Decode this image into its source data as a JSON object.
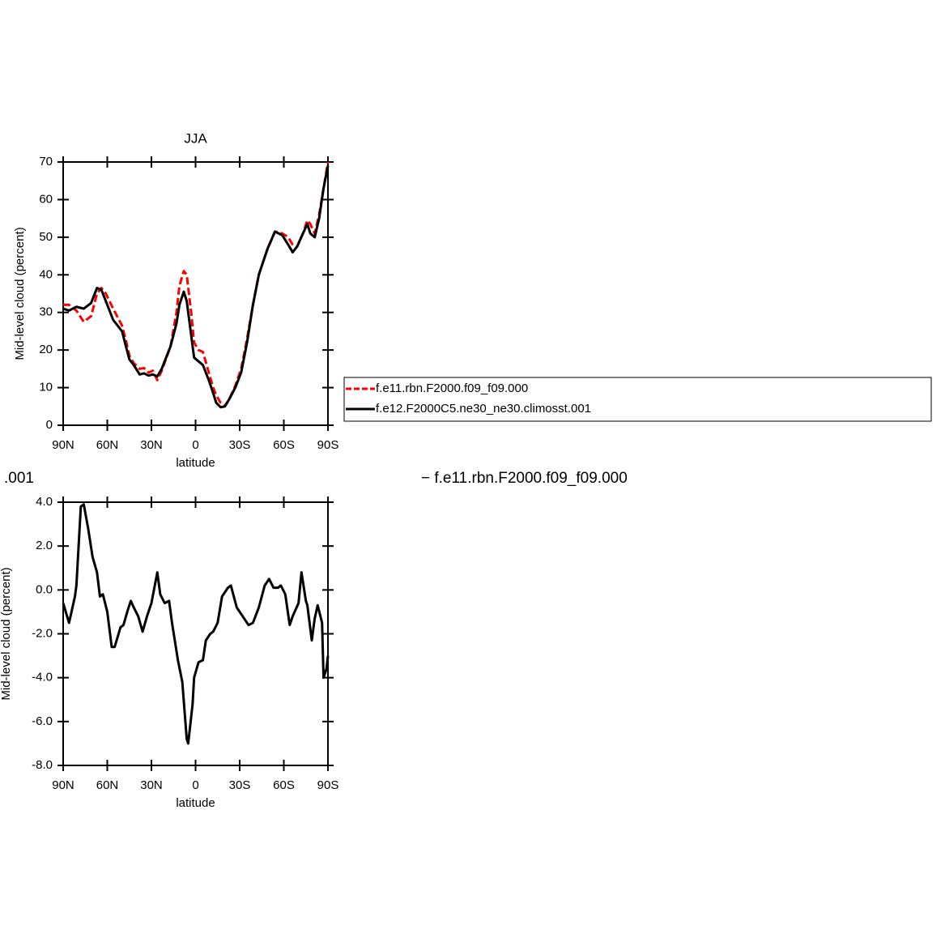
{
  "chart_data": [
    {
      "type": "line",
      "title": "JJA",
      "ylabel": "Mid-level cloud (percent)",
      "xlabel": "latitude",
      "xlim": [
        90,
        -90
      ],
      "xticks": [
        {
          "value": 90,
          "label": "90N"
        },
        {
          "value": 60,
          "label": "60N"
        },
        {
          "value": 30,
          "label": "30N"
        },
        0,
        {
          "value": -30,
          "label": "30S"
        },
        {
          "value": -60,
          "label": "60S"
        },
        {
          "value": -90,
          "label": "90S"
        }
      ],
      "ylim": [
        0,
        70
      ],
      "yticks": [
        0,
        10,
        20,
        30,
        40,
        50,
        60,
        70
      ],
      "legend": "right",
      "x": [
        90,
        86,
        81,
        76,
        71,
        67,
        64,
        61,
        56,
        50,
        47,
        45,
        42,
        38,
        35,
        32,
        29,
        26,
        23,
        17,
        13,
        11,
        8,
        6,
        3,
        1,
        -2,
        -5,
        -9,
        -12,
        -14,
        -17,
        -20,
        -23,
        -27,
        -31,
        -35,
        -39,
        -43,
        -49,
        -54,
        -59,
        -63,
        -66,
        -69,
        -73,
        -76,
        -78,
        -81,
        -84,
        -87,
        -90
      ],
      "series": [
        {
          "name": "f.e11.rbn.F2000.f09_f09.000",
          "color": "#ff0000",
          "dash": true,
          "values": [
            32,
            32,
            30.5,
            27.5,
            29,
            35,
            36.5,
            35,
            31,
            26.5,
            22,
            18.5,
            16.5,
            15,
            15.2,
            14,
            14.5,
            12,
            14.5,
            21,
            30,
            37,
            41,
            40,
            30,
            22,
            20,
            19.5,
            14,
            10,
            8,
            6,
            5.2,
            7,
            10.5,
            15,
            23,
            32,
            40,
            47,
            51.5,
            51,
            50,
            48,
            47.5,
            51,
            54.5,
            53.5,
            51,
            56,
            63,
            70
          ]
        },
        {
          "name": "f.e12.F2000C5.ne30_ne30.climosst.001",
          "color": "#000000",
          "dash": false,
          "values": [
            31,
            30.5,
            31.5,
            31,
            32.5,
            36.5,
            36,
            33,
            28,
            25,
            20.5,
            17.5,
            16,
            13.5,
            13.8,
            13.2,
            13.5,
            13,
            15,
            21,
            27,
            32,
            35.5,
            33,
            24,
            18,
            17,
            16,
            12,
            8.5,
            6,
            4.8,
            5,
            7,
            10,
            14,
            22,
            32,
            40,
            47,
            51.5,
            50.5,
            48,
            46,
            47.5,
            51,
            53.5,
            51,
            50,
            55,
            63,
            69
          ]
        }
      ]
    },
    {
      "type": "line",
      "ylabel": "Mid-level cloud (percent)",
      "xlabel": "latitude",
      "annotations": [
        ".001",
        "− f.e11.rbn.F2000.f09_f09.000"
      ],
      "xlim": [
        90,
        -90
      ],
      "xticks": [
        {
          "value": 90,
          "label": "90N"
        },
        {
          "value": 60,
          "label": "60N"
        },
        {
          "value": 30,
          "label": "30N"
        },
        0,
        {
          "value": -30,
          "label": "30S"
        },
        {
          "value": -60,
          "label": "60S"
        },
        {
          "value": -90,
          "label": "90S"
        }
      ],
      "ylim": [
        -8,
        4
      ],
      "yticks": [
        {
          "value": -8,
          "label": "-8.0"
        },
        {
          "value": -6,
          "label": "-6.0"
        },
        {
          "value": -4,
          "label": "-4.0"
        },
        {
          "value": -2,
          "label": "-2.0"
        },
        {
          "value": 0,
          "label": "0.0"
        },
        {
          "value": 2,
          "label": "2.0"
        },
        {
          "value": 4,
          "label": "4.0"
        }
      ],
      "x": [
        90,
        86,
        82,
        81,
        78,
        76,
        73,
        70,
        67,
        65,
        63,
        60,
        57,
        55,
        51,
        49,
        46,
        44,
        42,
        39,
        36,
        33,
        30,
        26,
        24,
        21,
        18,
        16,
        12,
        9,
        6,
        5,
        2,
        1,
        -2,
        -5,
        -7,
        -10,
        -12,
        -15,
        -18,
        -22,
        -24,
        -28,
        -32,
        -36,
        -39,
        -43,
        -47,
        -50,
        -53,
        -56,
        -58,
        -61,
        -64,
        -66,
        -70,
        -72,
        -75,
        -76,
        -79,
        -81,
        -83,
        -86,
        -87,
        -89,
        -90
      ],
      "series": [
        {
          "color": "#000000",
          "dash": false,
          "values": [
            -0.6,
            -1.5,
            -0.3,
            0.2,
            3.8,
            3.9,
            2.8,
            1.5,
            0.8,
            -0.3,
            -0.2,
            -1,
            -2.6,
            -2.6,
            -1.7,
            -1.6,
            -0.9,
            -0.5,
            -0.8,
            -1.2,
            -1.9,
            -1.2,
            -0.6,
            0.8,
            -0.2,
            -0.6,
            -0.5,
            -1.5,
            -3.2,
            -4.2,
            -6.8,
            -7,
            -5.2,
            -4,
            -3.3,
            -3.2,
            -2.3,
            -2,
            -1.9,
            -1.5,
            -0.3,
            0.1,
            0.2,
            -0.8,
            -1.2,
            -1.6,
            -1.5,
            -0.8,
            0.2,
            0.5,
            0.1,
            0.1,
            0.2,
            -0.2,
            -1.6,
            -1.2,
            -0.6,
            0.8,
            -0.5,
            -0.7,
            -2.3,
            -1.3,
            -0.7,
            -1.5,
            -4,
            -3.6,
            -3
          ]
        }
      ]
    }
  ]
}
